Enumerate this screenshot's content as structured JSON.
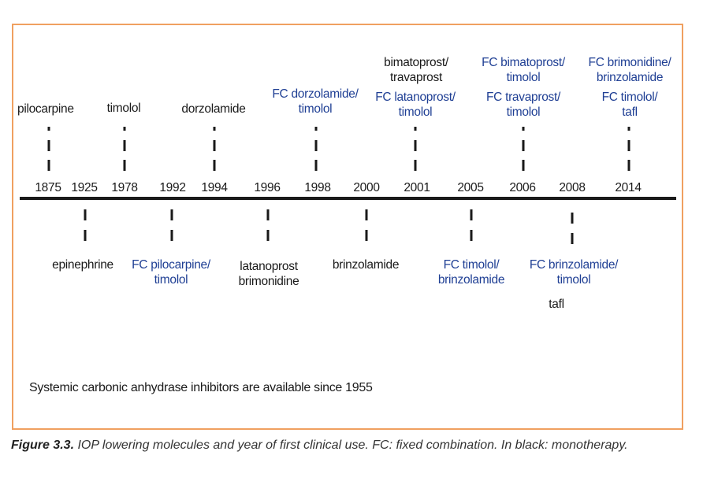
{
  "years": [
    "1875",
    "1925",
    "1978",
    "1992",
    "1994",
    "1996",
    "1998",
    "2000",
    "2001",
    "2005",
    "2006",
    "2008",
    "2014"
  ],
  "above": [
    {
      "lines": [
        "pilocarpine"
      ],
      "kind": "mono"
    },
    {
      "lines": [
        "timolol"
      ],
      "kind": "mono"
    },
    {
      "lines": [
        "dorzolamide"
      ],
      "kind": "mono"
    },
    {
      "lines": [
        "FC dorzolamide/",
        "timolol"
      ],
      "kind": "fc"
    },
    {
      "lines": [
        "bimatoprost/",
        "travaprost"
      ],
      "kind": "mono"
    },
    {
      "lines": [
        "FC latanoprost/",
        "timolol"
      ],
      "kind": "fc"
    },
    {
      "lines": [
        "FC bimatoprost/",
        "timolol"
      ],
      "kind": "fc"
    },
    {
      "lines": [
        "FC travaprost/",
        "timolol"
      ],
      "kind": "fc"
    },
    {
      "lines": [
        "FC brimonidine/",
        "brinzolamide"
      ],
      "kind": "fc"
    },
    {
      "lines": [
        "FC timolol/",
        "tafl"
      ],
      "kind": "fc"
    }
  ],
  "below": [
    {
      "lines": [
        "epinephrine"
      ],
      "kind": "mono"
    },
    {
      "lines": [
        "FC pilocarpine/",
        "timolol"
      ],
      "kind": "fc"
    },
    {
      "lines": [
        "latanoprost",
        "brimonidine"
      ],
      "kind": "mono"
    },
    {
      "lines": [
        "brinzolamide"
      ],
      "kind": "mono"
    },
    {
      "lines": [
        "FC timolol/",
        "brinzolamide"
      ],
      "kind": "fc"
    },
    {
      "lines": [
        "FC brinzolamide/",
        "timolol"
      ],
      "kind": "fc"
    },
    {
      "lines": [
        "tafl"
      ],
      "kind": "mono"
    }
  ],
  "footnote": "Systemic carbonic anhydrase inhibitors are available since 1955",
  "caption": {
    "label": "Figure 3.3.",
    "text": " IOP lowering molecules and year of first clinical use. FC: fixed combination. In black: monotherapy."
  },
  "colors": {
    "frame": "#f0a060",
    "fc_text": "#1f3f94",
    "mono_text": "#1a1a1a",
    "axis": "#1a1a1a"
  }
}
